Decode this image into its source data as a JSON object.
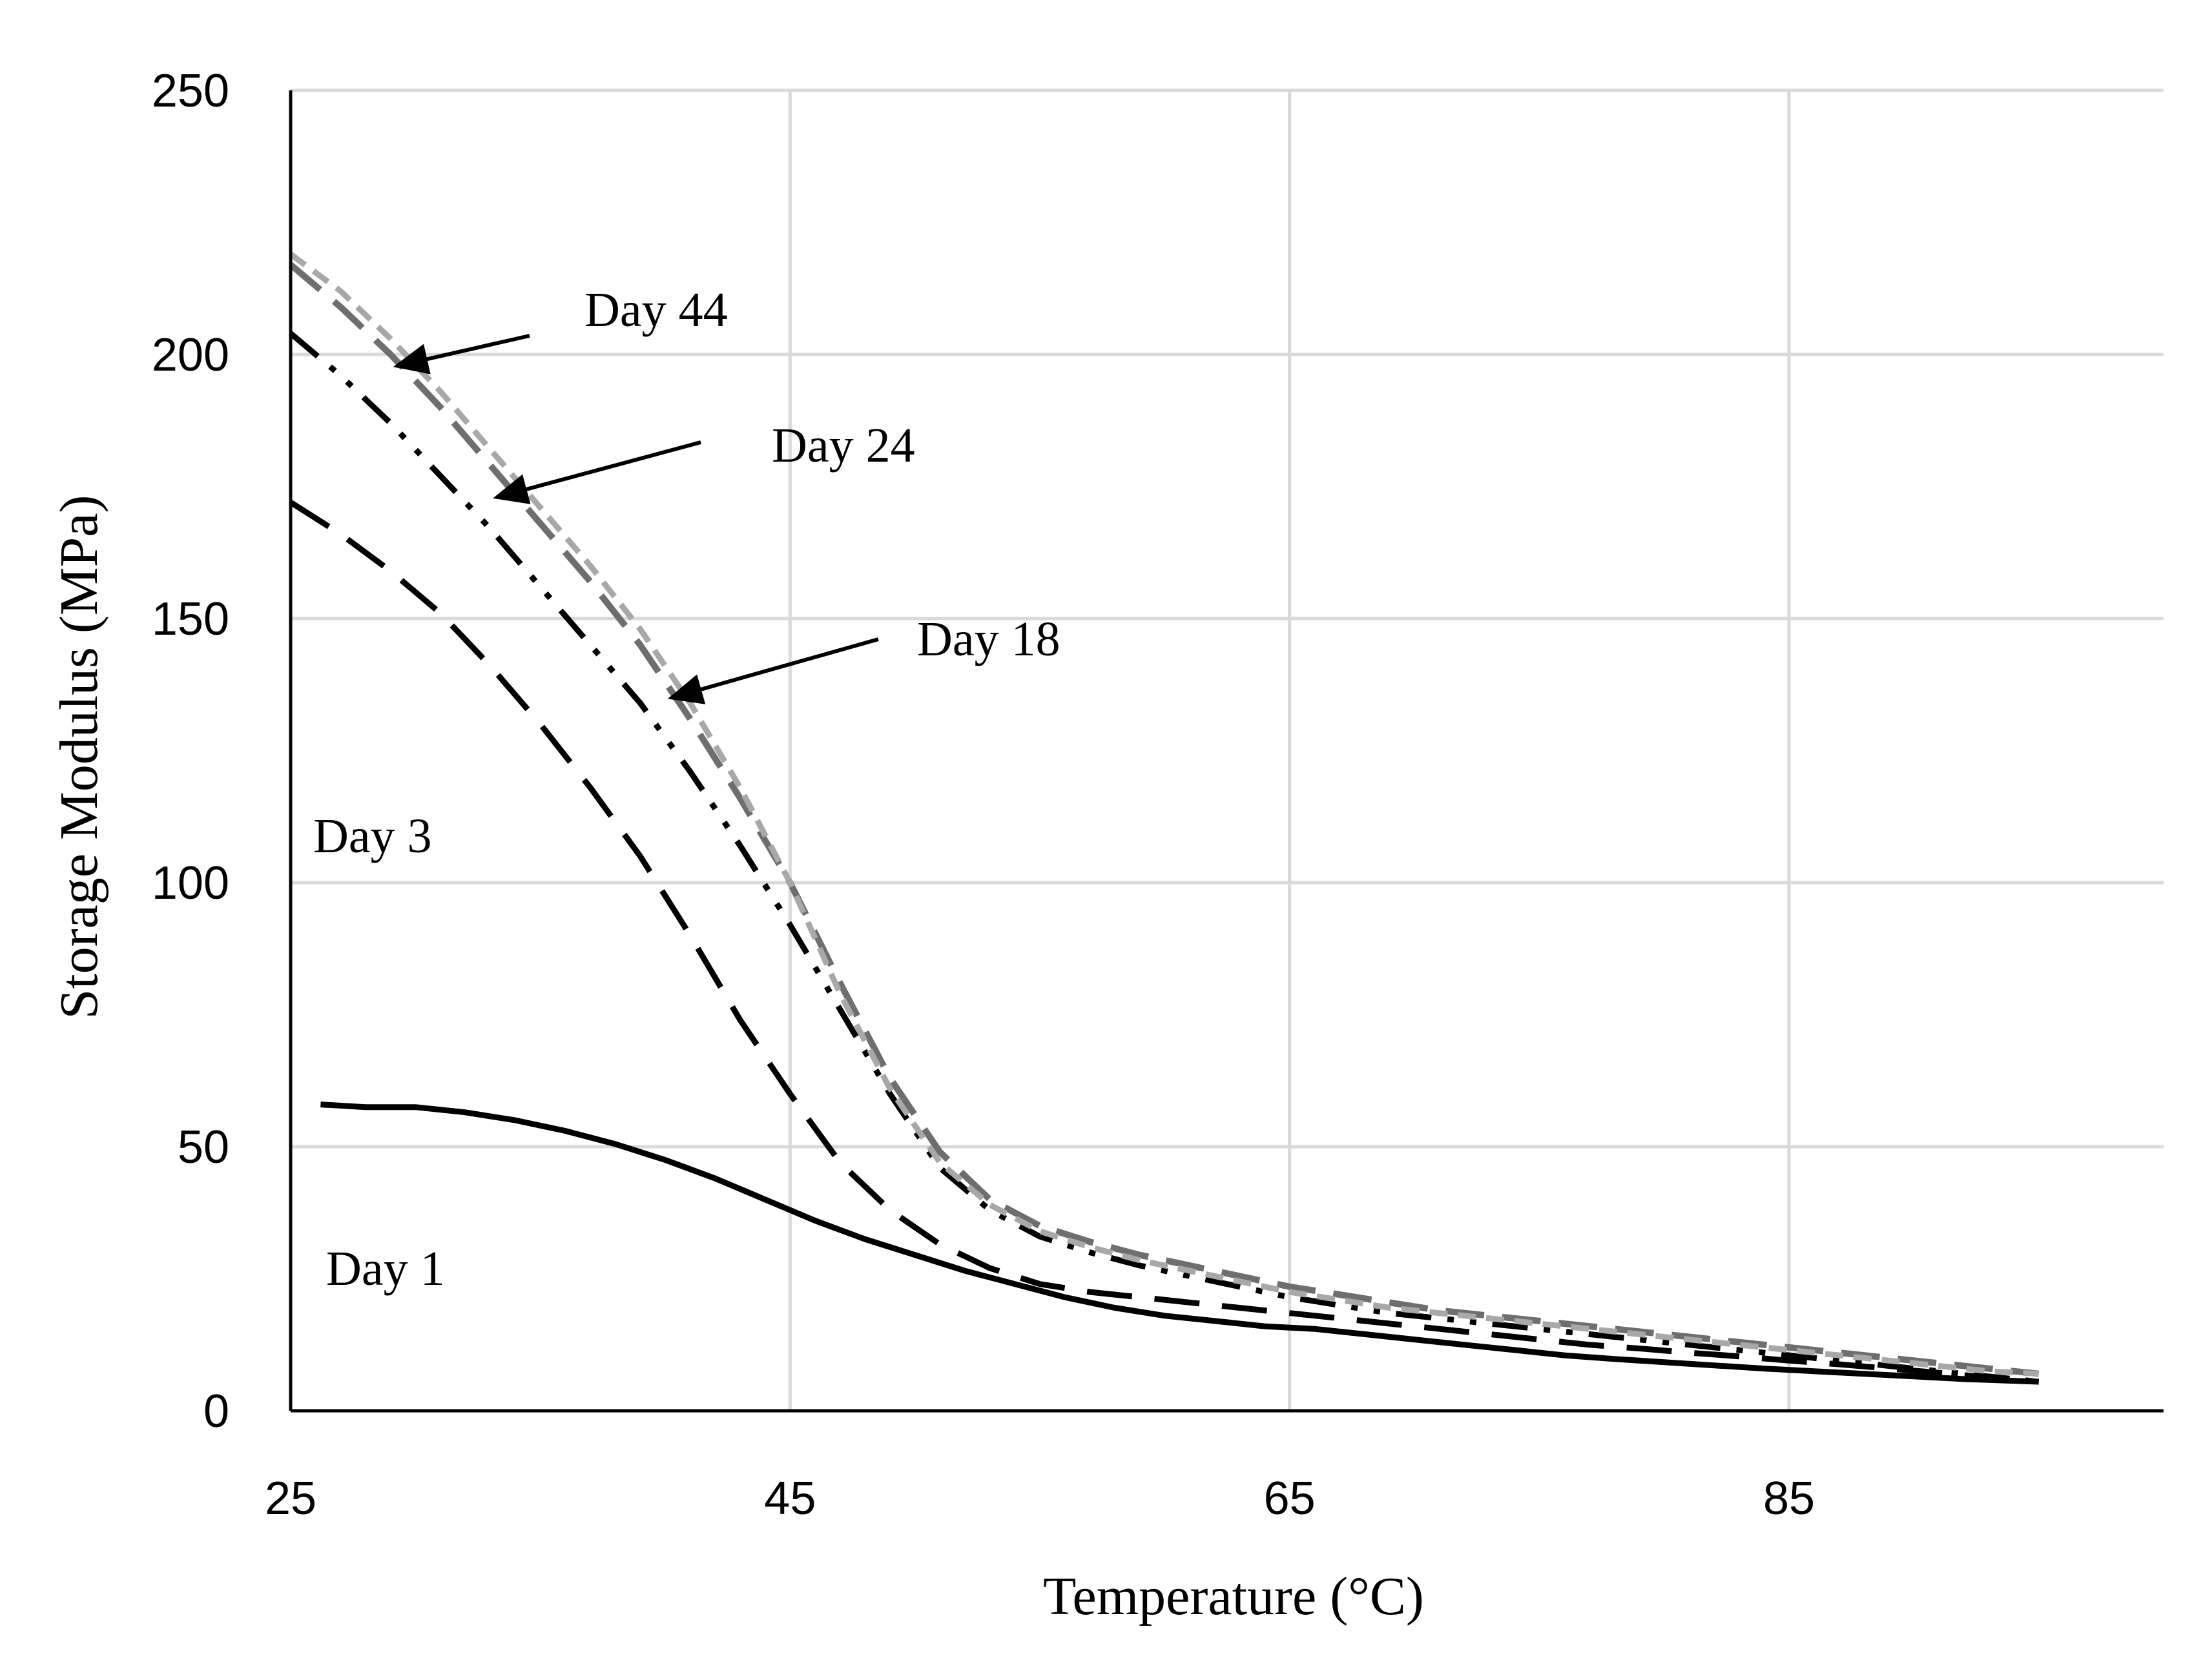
{
  "chart_data": {
    "type": "line",
    "title": "",
    "xlabel": "Temperature (°C)",
    "ylabel": "Storage Modulus (MPa)",
    "xlim": [
      25,
      100
    ],
    "ylim": [
      0,
      250
    ],
    "xticks": [
      25,
      45,
      65,
      85
    ],
    "yticks": [
      0,
      50,
      100,
      150,
      200,
      250
    ],
    "grid": true,
    "series": [
      {
        "name": "Day 1",
        "color": "#000000",
        "dash": "solid",
        "x": [
          26.2,
          28,
          30,
          32,
          34,
          36,
          38,
          40,
          42,
          44,
          46,
          48,
          50,
          52,
          54,
          56,
          58,
          60,
          62,
          64,
          66,
          68,
          70,
          72,
          74,
          76,
          78,
          80,
          82,
          84,
          86,
          88,
          90,
          92,
          95
        ],
        "y": [
          58,
          57.5,
          57.5,
          56.5,
          55,
          53,
          50.5,
          47.5,
          44,
          40,
          36,
          32.5,
          29.5,
          26.5,
          24,
          21.5,
          19.5,
          18,
          17,
          16,
          15.5,
          14.5,
          13.5,
          12.5,
          11.5,
          10.5,
          9.8,
          9.2,
          8.6,
          8,
          7.5,
          7,
          6.5,
          6,
          5.5
        ]
      },
      {
        "name": "Day 3",
        "color": "#000000",
        "dash": "long-dash",
        "x": [
          25,
          27,
          29,
          31,
          33,
          35,
          37,
          39,
          41,
          43,
          45,
          47,
          49,
          51,
          53,
          55,
          57,
          59,
          61,
          63,
          65,
          67,
          69,
          71,
          73,
          75,
          77,
          79,
          81,
          83,
          85,
          87,
          89,
          91,
          93,
          95
        ],
        "y": [
          172,
          166,
          159,
          151,
          141,
          130,
          118,
          105,
          90,
          74,
          60,
          47,
          38,
          31.5,
          27,
          24,
          22.5,
          21.5,
          20.5,
          19.5,
          18.5,
          17.5,
          16.5,
          15.5,
          14.5,
          13.5,
          12.5,
          11.8,
          11,
          10.3,
          9.5,
          8.8,
          8,
          7.2,
          6.3,
          5.5
        ]
      },
      {
        "name": "Day 18",
        "color": "#000000",
        "dash": "dash-dot-dot",
        "x": [
          25,
          27,
          29,
          31,
          33,
          35,
          37,
          39,
          41,
          43,
          45,
          47,
          49,
          51,
          53,
          55,
          57,
          59,
          61,
          63,
          65,
          67,
          69,
          71,
          73,
          75,
          77,
          79,
          81,
          83,
          85,
          87,
          89,
          91,
          93,
          95
        ],
        "y": [
          204,
          196,
          187,
          177,
          167,
          156,
          145,
          134,
          121,
          107,
          92,
          76,
          60,
          46,
          38,
          33,
          30,
          27.5,
          25.5,
          23.5,
          21.5,
          20,
          18.5,
          17.5,
          16.5,
          15.5,
          14.5,
          13.5,
          12.5,
          11.5,
          10.5,
          9.5,
          8.5,
          7.5,
          6.5,
          5.5
        ]
      },
      {
        "name": "Day 24",
        "color": "#6e6e6e",
        "dash": "dash",
        "x": [
          25,
          27,
          29,
          31,
          33,
          35,
          37,
          39,
          41,
          43,
          45,
          47,
          49,
          51,
          53,
          55,
          57,
          59,
          61,
          63,
          65,
          67,
          69,
          71,
          73,
          75,
          77,
          79,
          81,
          83,
          85,
          87,
          89,
          91,
          93,
          95
        ],
        "y": [
          217,
          209,
          200,
          190,
          179,
          168,
          157,
          145,
          131,
          116,
          100,
          81,
          63,
          49,
          40,
          35,
          32,
          29.5,
          27.5,
          25.5,
          23.5,
          22,
          20.5,
          19,
          18,
          17,
          16,
          15,
          14,
          13,
          12,
          11,
          10,
          9,
          8,
          7
        ]
      },
      {
        "name": "Day 44",
        "color": "#a8a8a8",
        "dash": "short-dash",
        "x": [
          25,
          27,
          29,
          31,
          33,
          35,
          37,
          39,
          41,
          43,
          45,
          47,
          49,
          51,
          53,
          55,
          57,
          59,
          61,
          63,
          65,
          67,
          69,
          71,
          73,
          75,
          77,
          79,
          81,
          83,
          85,
          87,
          89,
          91,
          93,
          95
        ],
        "y": [
          219,
          212,
          203,
          193,
          182,
          171,
          160,
          148,
          134,
          118,
          100,
          79,
          61,
          47,
          39,
          34,
          31,
          28.5,
          26.5,
          24.5,
          22.5,
          21,
          19.5,
          18.5,
          17.5,
          16.5,
          15.5,
          14.5,
          13.5,
          12.5,
          11.5,
          10.5,
          9.5,
          8.5,
          7.5,
          7
        ]
      }
    ],
    "annotations": [
      {
        "text": "Day 44",
        "arrow": true,
        "target": [
          28.5,
          197
        ]
      },
      {
        "text": "Day 24",
        "arrow": true,
        "target": [
          32.5,
          172
        ]
      },
      {
        "text": "Day 18",
        "arrow": true,
        "target": [
          39.5,
          134
        ]
      },
      {
        "text": "Day 3",
        "arrow": false
      },
      {
        "text": "Day 1",
        "arrow": false
      }
    ]
  }
}
